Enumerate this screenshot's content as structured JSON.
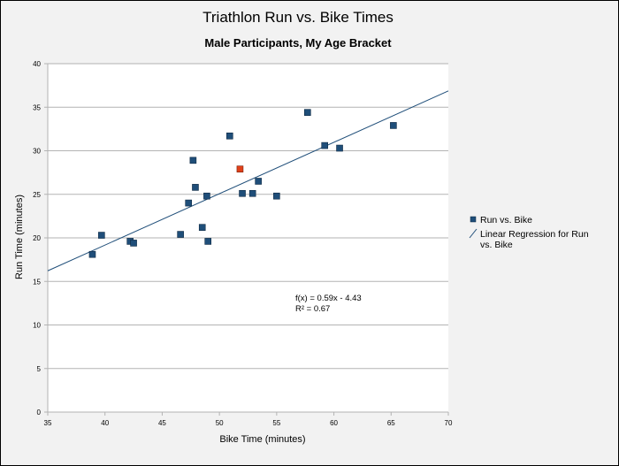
{
  "chart_data": {
    "type": "scatter",
    "title": "Triathlon Run vs. Bike Times",
    "subtitle": "Male Participants, My Age Bracket",
    "xlabel": "Bike Time (minutes)",
    "ylabel": "Run Time (minutes)",
    "xlim": [
      35,
      70
    ],
    "ylim": [
      0,
      40
    ],
    "xticks": [
      35,
      40,
      45,
      50,
      55,
      60,
      65,
      70
    ],
    "yticks": [
      0,
      5,
      10,
      15,
      20,
      25,
      30,
      35,
      40
    ],
    "grid": "horizontal",
    "legend_position": "right",
    "legend": [
      "Run vs. Bike",
      "Linear Regression for Run vs. Bike"
    ],
    "colors": {
      "points": "#1f4e79",
      "highlight": "#e0401a",
      "line": "#1f4e79",
      "grid": "#b3b3b3"
    },
    "series": [
      {
        "name": "Run vs. Bike",
        "points": [
          {
            "x": 38.9,
            "y": 18.1
          },
          {
            "x": 39.7,
            "y": 20.3
          },
          {
            "x": 42.2,
            "y": 19.6
          },
          {
            "x": 42.5,
            "y": 19.4
          },
          {
            "x": 46.6,
            "y": 20.4
          },
          {
            "x": 47.3,
            "y": 24.0
          },
          {
            "x": 47.7,
            "y": 28.9
          },
          {
            "x": 47.9,
            "y": 25.8
          },
          {
            "x": 48.5,
            "y": 21.2
          },
          {
            "x": 48.9,
            "y": 24.8
          },
          {
            "x": 49.0,
            "y": 19.6
          },
          {
            "x": 50.9,
            "y": 31.7
          },
          {
            "x": 51.8,
            "y": 27.9,
            "highlight": true
          },
          {
            "x": 52.0,
            "y": 25.1
          },
          {
            "x": 52.9,
            "y": 25.1
          },
          {
            "x": 53.4,
            "y": 26.5
          },
          {
            "x": 55.0,
            "y": 24.8
          },
          {
            "x": 57.7,
            "y": 34.4
          },
          {
            "x": 59.2,
            "y": 30.6
          },
          {
            "x": 60.5,
            "y": 30.3
          },
          {
            "x": 65.2,
            "y": 32.9
          }
        ]
      },
      {
        "name": "Linear Regression for Run vs. Bike",
        "slope": 0.59,
        "intercept": -4.43
      }
    ],
    "annotations": [
      "f(x) = 0.59x - 4.43",
      "R² = 0.67"
    ]
  }
}
